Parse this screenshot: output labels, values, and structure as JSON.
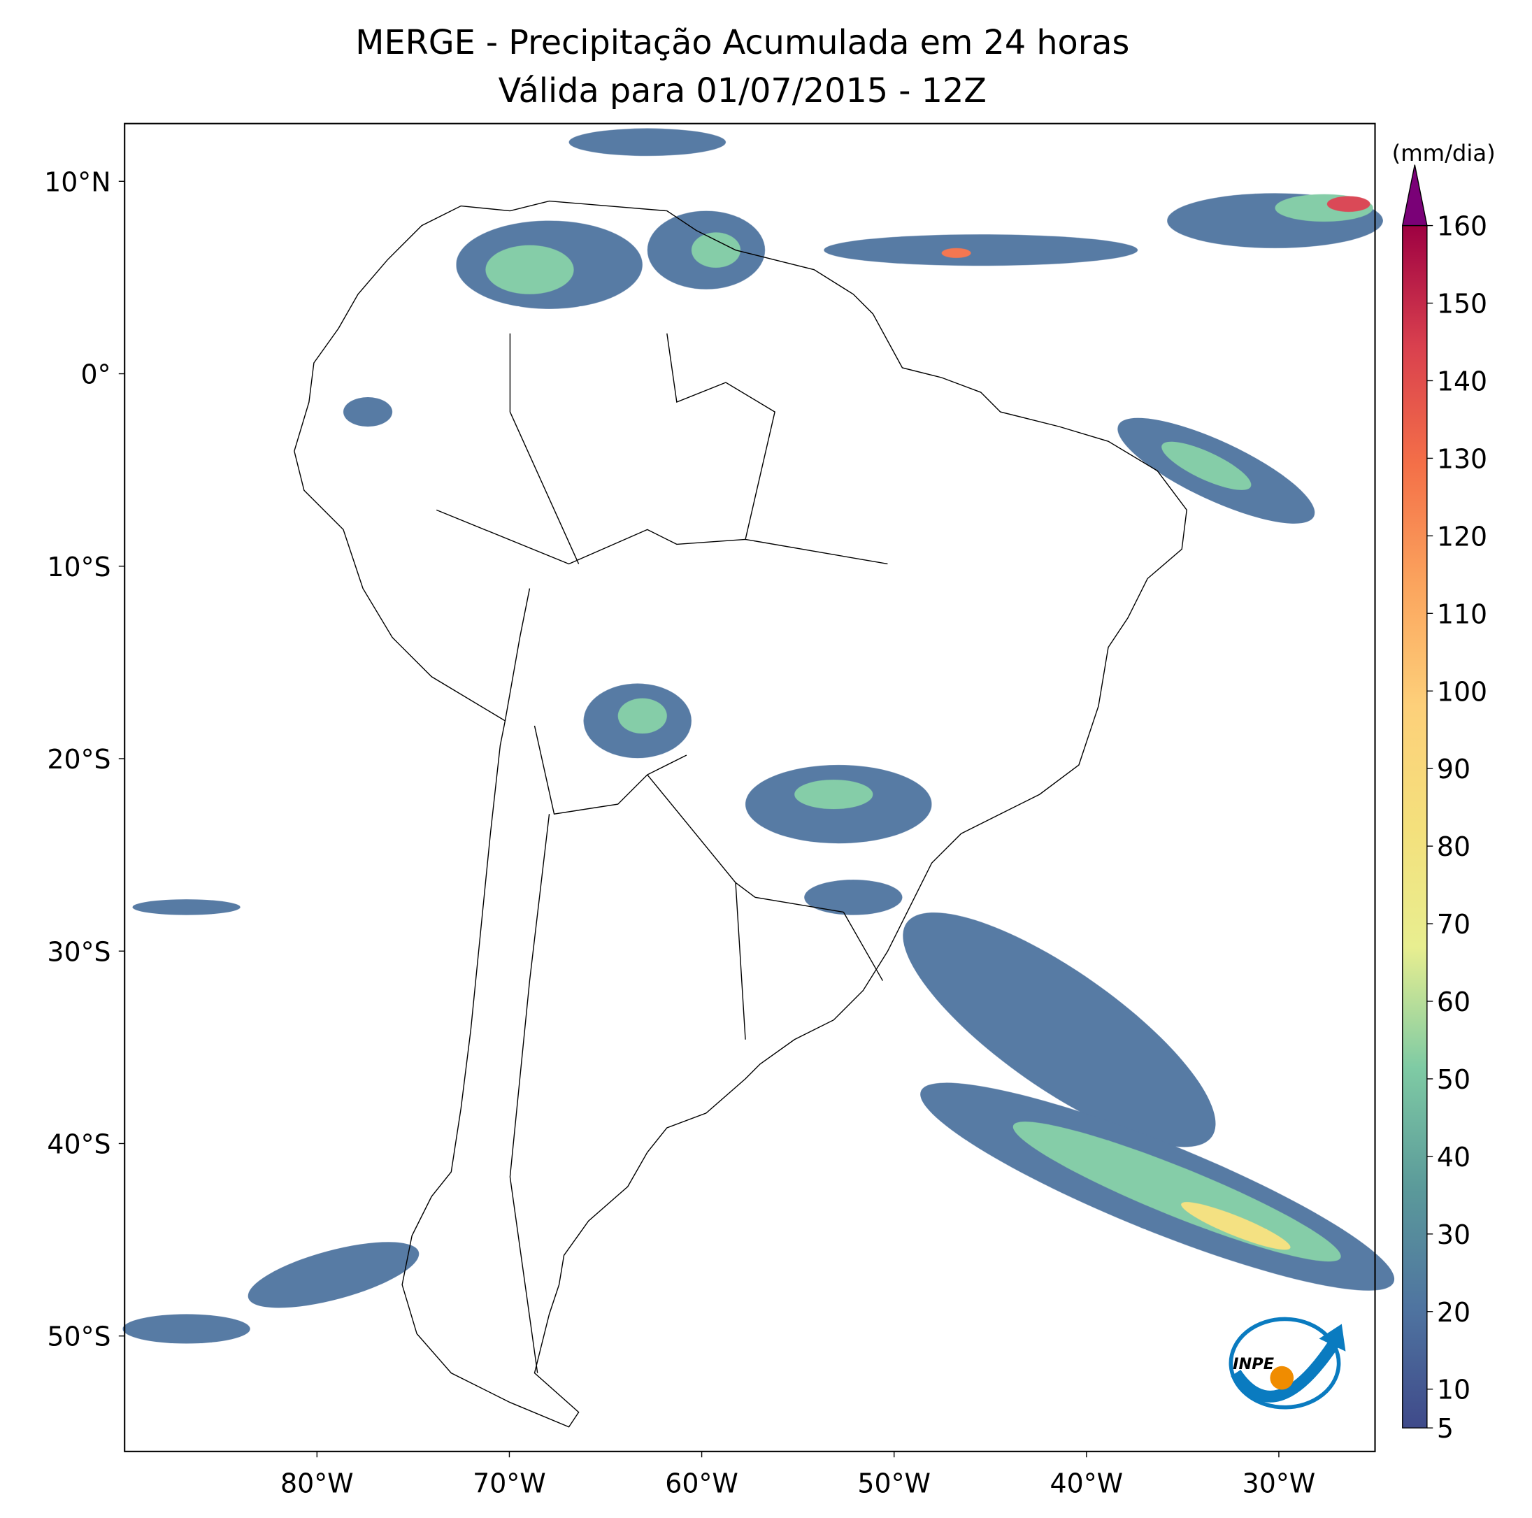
{
  "title": "MERGE - Precipitação Acumulada em 24 horas",
  "subtitle": "Válida para 01/07/2015 - 12Z",
  "map": {
    "lonlim": [
      -90,
      -25
    ],
    "latlim": [
      -56,
      13
    ],
    "lat_ticks": [
      {
        "value": 10,
        "label": "10°N"
      },
      {
        "value": 0,
        "label": "0°"
      },
      {
        "value": -10,
        "label": "10°S"
      },
      {
        "value": -20,
        "label": "20°S"
      },
      {
        "value": -30,
        "label": "30°S"
      },
      {
        "value": -40,
        "label": "40°S"
      },
      {
        "value": -50,
        "label": "50°S"
      }
    ],
    "lon_ticks": [
      {
        "value": -80,
        "label": "80°W"
      },
      {
        "value": -70,
        "label": "70°W"
      },
      {
        "value": -60,
        "label": "60°W"
      },
      {
        "value": -50,
        "label": "50°W"
      },
      {
        "value": -40,
        "label": "40°W"
      },
      {
        "value": -30,
        "label": "30°W"
      }
    ]
  },
  "colorbar": {
    "label": "(mm/dia)",
    "lim": [
      5,
      160
    ],
    "ticks": [
      5,
      10,
      20,
      30,
      40,
      50,
      60,
      70,
      80,
      90,
      100,
      110,
      120,
      130,
      140,
      150,
      160
    ],
    "colors": [
      "#3f4a8a",
      "#4f74a0",
      "#5b9a9a",
      "#7fcba4",
      "#e8ee90",
      "#f4e07c",
      "#fdd07a",
      "#fba55e",
      "#f47048",
      "#d9404e",
      "#9e0142"
    ],
    "extend_color": "#7a0177"
  },
  "logo": "INPE"
}
